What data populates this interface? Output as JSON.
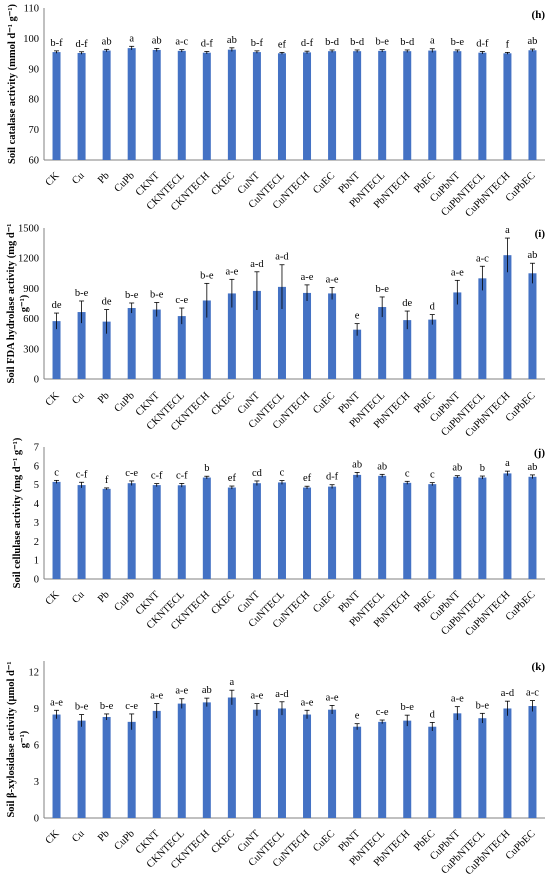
{
  "style": {
    "bar_color": "#4472C4",
    "axis_color": "#808080",
    "error_color": "#000000"
  },
  "chart_data": [
    {
      "type": "bar",
      "panel": "(h)",
      "ylabel": "Soil catalase activity (mmol d⁻¹ g⁻¹)",
      "ylim": [
        60,
        110
      ],
      "yticks": [
        60,
        70,
        80,
        90,
        100,
        110
      ],
      "grid": false,
      "categories": [
        "CK",
        "Cu",
        "Pb",
        "CuPb",
        "CKNT",
        "CKNTECL",
        "CKNTECH",
        "CKEC",
        "CuNT",
        "CuNTECL",
        "CuNTECH",
        "CuEC",
        "PbNT",
        "PbNTECL",
        "PbNTECH",
        "PbEC",
        "CuPbNT",
        "CuPbNTECL",
        "CuPbNTECH",
        "CuPbEC"
      ],
      "values": [
        95.5,
        95.2,
        96.0,
        96.8,
        96.2,
        95.9,
        95.3,
        96.3,
        95.5,
        95.1,
        95.4,
        95.8,
        95.8,
        95.9,
        95.8,
        96.0,
        95.8,
        95.3,
        95.1,
        96.1
      ],
      "errors": [
        0.4,
        0.4,
        0.4,
        0.6,
        0.5,
        0.4,
        0.4,
        0.6,
        0.4,
        0.3,
        0.4,
        0.4,
        0.4,
        0.4,
        0.4,
        0.6,
        0.4,
        0.4,
        0.3,
        0.4
      ],
      "letters": [
        "b-f",
        "d-f",
        "ab",
        "a",
        "ab",
        "a-c",
        "d-f",
        "ab",
        "b-f",
        "ef",
        "d-f",
        "b-d",
        "b-d",
        "b-e",
        "b-d",
        "a",
        "b-e",
        "d-f",
        "f",
        "ab"
      ]
    },
    {
      "type": "bar",
      "panel": "(i)",
      "ylabel": "Soil FDA hydrolase activity (mg d⁻¹ g⁻¹)",
      "ylim": [
        0,
        1500
      ],
      "yticks": [
        0,
        300,
        600,
        900,
        1200,
        1500
      ],
      "grid": false,
      "categories": [
        "CK",
        "Cu",
        "Pb",
        "CuPb",
        "CKNT",
        "CKNTECL",
        "CKNTECH",
        "CKEC",
        "CuNT",
        "CuNTECL",
        "CuNTECH",
        "CuEC",
        "PbNT",
        "PbNTECL",
        "PbNTECH",
        "PbEC",
        "CuPbNT",
        "CuPbNTECL",
        "CuPbNTECH",
        "CuPbEC"
      ],
      "values": [
        575,
        665,
        570,
        705,
        690,
        625,
        780,
        850,
        875,
        915,
        855,
        850,
        490,
        715,
        585,
        590,
        860,
        1000,
        1230,
        1050
      ],
      "errors": [
        80,
        110,
        120,
        50,
        70,
        80,
        170,
        140,
        190,
        220,
        80,
        60,
        60,
        100,
        90,
        50,
        120,
        120,
        170,
        100
      ],
      "letters": [
        "de",
        "b-e",
        "de",
        "b-e",
        "b-e",
        "c-e",
        "b-e",
        "a-e",
        "a-d",
        "a-d",
        "a-e",
        "a-e",
        "e",
        "b-e",
        "de",
        "d",
        "a-e",
        "a-c",
        "a",
        "ab"
      ]
    },
    {
      "type": "bar",
      "panel": "(j)",
      "ylabel": "Soil cellulase activity (mg d⁻¹ g⁻¹)",
      "ylim": [
        0,
        7
      ],
      "yticks": [
        0,
        1,
        2,
        3,
        4,
        5,
        6,
        7
      ],
      "grid": false,
      "categories": [
        "CK",
        "Cu",
        "Pb",
        "CuPb",
        "CKNT",
        "CKNTECL",
        "CKNTECH",
        "CKEC",
        "CuNT",
        "CuNTECL",
        "CuNTECH",
        "CuEC",
        "PbNT",
        "PbNTECL",
        "PbNTECH",
        "PbEC",
        "CuPbNT",
        "CuPbNTECL",
        "CuPbNTECH",
        "CuPbEC"
      ],
      "values": [
        5.15,
        4.98,
        4.78,
        5.08,
        4.98,
        4.97,
        5.38,
        4.85,
        5.08,
        5.12,
        4.85,
        4.9,
        5.52,
        5.47,
        5.1,
        5.03,
        5.42,
        5.38,
        5.6,
        5.42
      ],
      "errors": [
        0.08,
        0.15,
        0.05,
        0.12,
        0.08,
        0.1,
        0.07,
        0.08,
        0.12,
        0.1,
        0.07,
        0.1,
        0.13,
        0.08,
        0.08,
        0.08,
        0.06,
        0.08,
        0.12,
        0.1
      ],
      "letters": [
        "c",
        "c-f",
        "f",
        "c-e",
        "c-f",
        "c-f",
        "b",
        "ef",
        "cd",
        "c",
        "ef",
        "d-f",
        "ab",
        "ab",
        "c",
        "c",
        "ab",
        "b",
        "a",
        "ab"
      ]
    },
    {
      "type": "bar",
      "panel": "(k)",
      "ylabel": "Soil β-xylosidase activity (μmol d⁻¹ g⁻¹)",
      "ylim": [
        0,
        12.9
      ],
      "yticks": [
        0,
        3,
        6,
        9,
        12
      ],
      "grid": false,
      "categories": [
        "CK",
        "Cu",
        "Pb",
        "CuPb",
        "CKNT",
        "CKNTECL",
        "CKNTECH",
        "CKEC",
        "CuNT",
        "CuNTECL",
        "CuNTECH",
        "CuEC",
        "PbNT",
        "PbNTECL",
        "PbNTECH",
        "PbEC",
        "CuPbNT",
        "CuPbNTECL",
        "CuPbNTECH",
        "CuPbEC"
      ],
      "values": [
        8.5,
        8.0,
        8.3,
        7.9,
        8.8,
        9.4,
        9.5,
        9.9,
        8.9,
        9.0,
        8.5,
        8.9,
        7.5,
        7.9,
        8.0,
        7.5,
        8.6,
        8.2,
        9.0,
        9.2
      ],
      "errors": [
        0.35,
        0.5,
        0.25,
        0.65,
        0.6,
        0.4,
        0.35,
        0.6,
        0.5,
        0.55,
        0.35,
        0.35,
        0.25,
        0.15,
        0.45,
        0.35,
        0.55,
        0.4,
        0.6,
        0.45
      ],
      "letters": [
        "a-e",
        "b-e",
        "b-e",
        "c-e",
        "a-e",
        "a-e",
        "ab",
        "a",
        "a-e",
        "a-d",
        "a-e",
        "a-e",
        "e",
        "c-e",
        "b-e",
        "d",
        "a-e",
        "b-e",
        "a-d",
        "a-c"
      ]
    }
  ]
}
